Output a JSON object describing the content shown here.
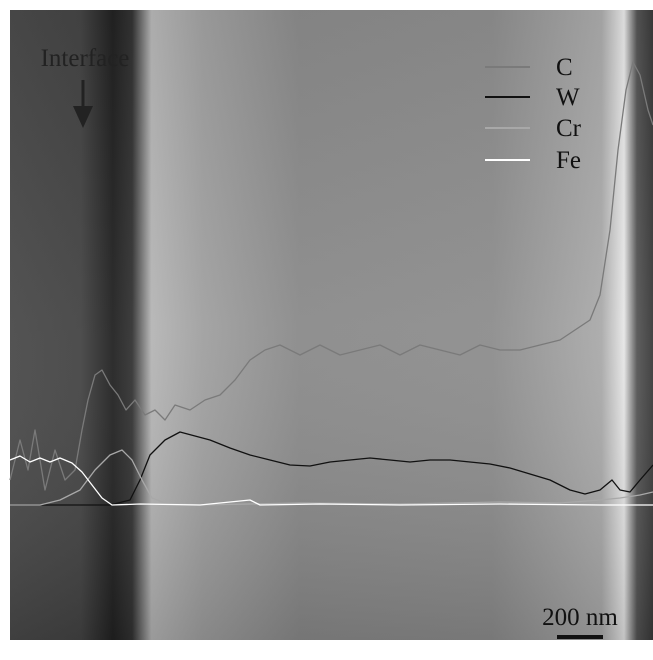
{
  "annotation": "Interface",
  "legend": [
    "C",
    "W",
    "Cr",
    "Fe"
  ],
  "scale_bar": "200 nm"
}
